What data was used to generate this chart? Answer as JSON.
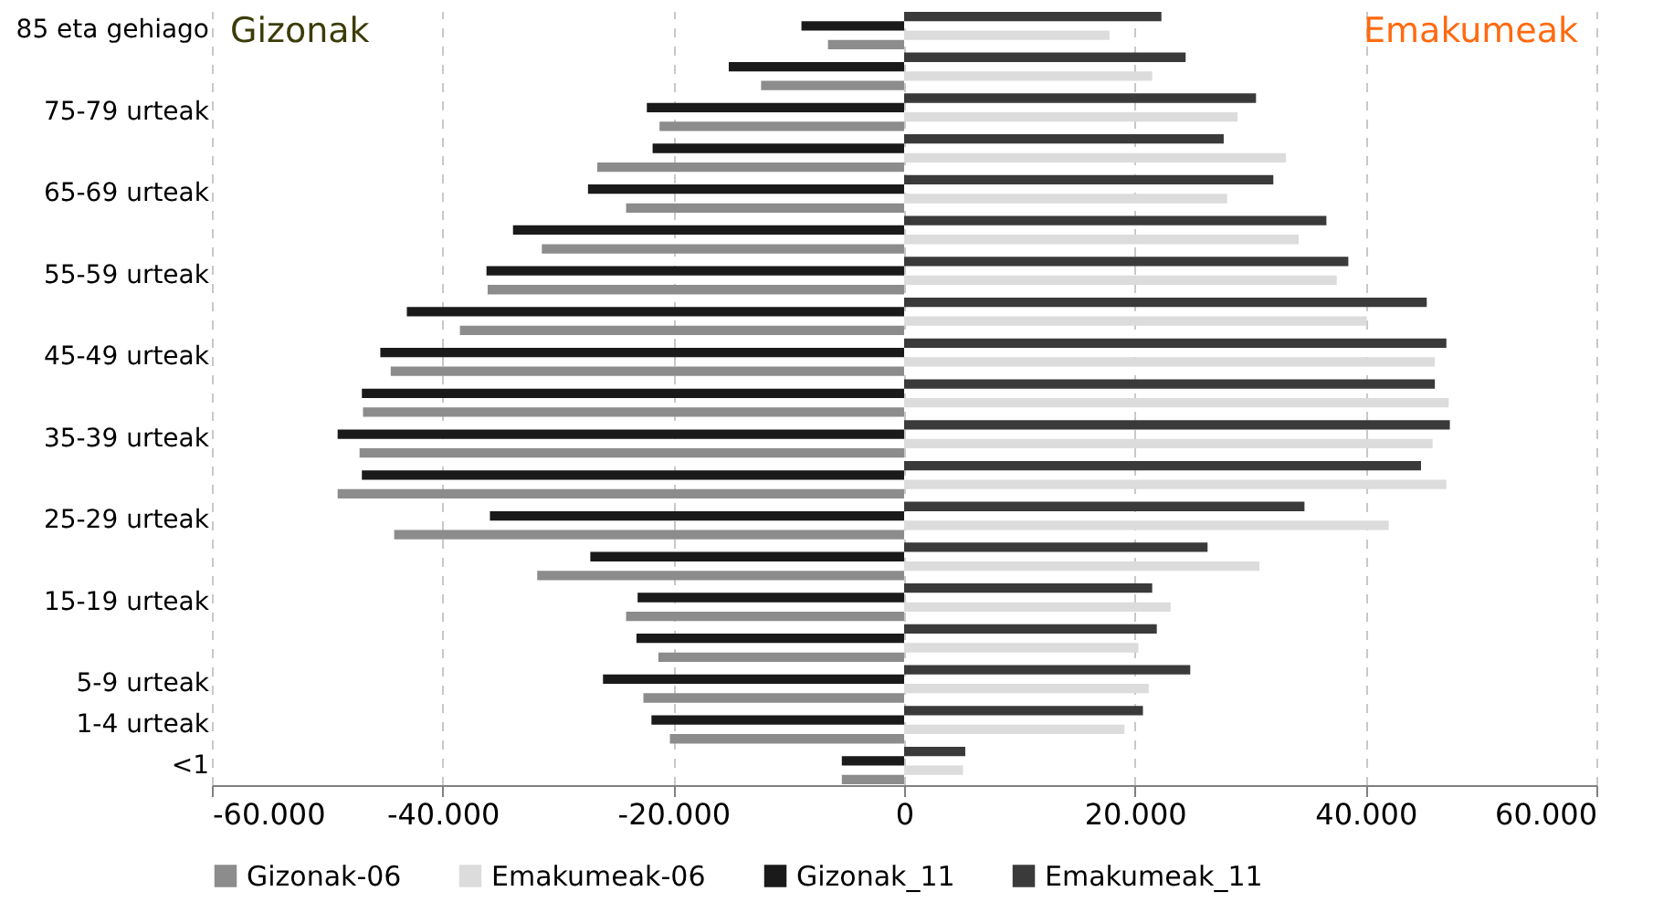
{
  "chart_data": {
    "type": "bar",
    "orientation": "horizontal",
    "categories": [
      "85 eta gehiago",
      null,
      "75-79 urteak",
      null,
      "65-69 urteak",
      null,
      "55-59 urteak",
      null,
      "45-49 urteak",
      null,
      "35-39 urteak",
      null,
      "25-29 urteak",
      null,
      "15-19 urteak",
      null,
      "5-9 urteak",
      "1-4 urteak",
      "<1"
    ],
    "series": [
      {
        "name": "Gizonak-06",
        "color": "#8c8c8c",
        "values": [
          -6600.0,
          -12400.0,
          -21200.0,
          -26600.0,
          -24100.0,
          -31400.0,
          -36100.0,
          -38500.0,
          -44500.0,
          -46900.0,
          -47200.0,
          -49100.0,
          -44200.0,
          -31800.0,
          -24100.0,
          -21300.0,
          -22600.0,
          -20300.0,
          -5400.0
        ]
      },
      {
        "name": "Emakumeak-06",
        "color": "#dcdcdc",
        "values": [
          17800.0,
          21500.0,
          28900.0,
          33100.0,
          28000.0,
          34200.0,
          37500.0,
          40100.0,
          46000.0,
          47200.0,
          45800.0,
          47000.0,
          42000.0,
          30800.0,
          23100.0,
          20300.0,
          21200.0,
          19100.0,
          5100.0
        ]
      },
      {
        "name": "Gizonak_11",
        "color": "#1a1a1a",
        "values": [
          -8900.0,
          -15200.0,
          -22300.0,
          -21800.0,
          -27400.0,
          -33900.0,
          -36200.0,
          -43100.0,
          -45400.0,
          -47000.0,
          -49100.0,
          -47000.0,
          -35900.0,
          -27200.0,
          -23100.0,
          -23200.0,
          -26100.0,
          -21900.0,
          -5400.0
        ]
      },
      {
        "name": "Emakumeak_11",
        "color": "#3a3a3a",
        "values": [
          22300.0,
          24400.0,
          30500.0,
          27700.0,
          32000.0,
          36600.0,
          38500.0,
          45300.0,
          47000.0,
          46000.0,
          47300.0,
          44800.0,
          34700.0,
          26300.0,
          21500.0,
          21900.0,
          24800.0,
          20700.0,
          5300.0
        ]
      }
    ],
    "xlim": [
      -60000,
      60000
    ],
    "xticks": [
      {
        "value": -60000,
        "label": "-60.000"
      },
      {
        "value": -40000,
        "label": "-40.000"
      },
      {
        "value": -20000,
        "label": "-20.000"
      },
      {
        "value": 0,
        "label": "0"
      },
      {
        "value": 20000,
        "label": "20.000"
      },
      {
        "value": 40000,
        "label": "40.000"
      },
      {
        "value": 60000,
        "label": "60.000"
      }
    ],
    "grid": "x",
    "legend": "bottom",
    "annotations": [
      "Gizonak",
      "Emakumeak"
    ]
  }
}
